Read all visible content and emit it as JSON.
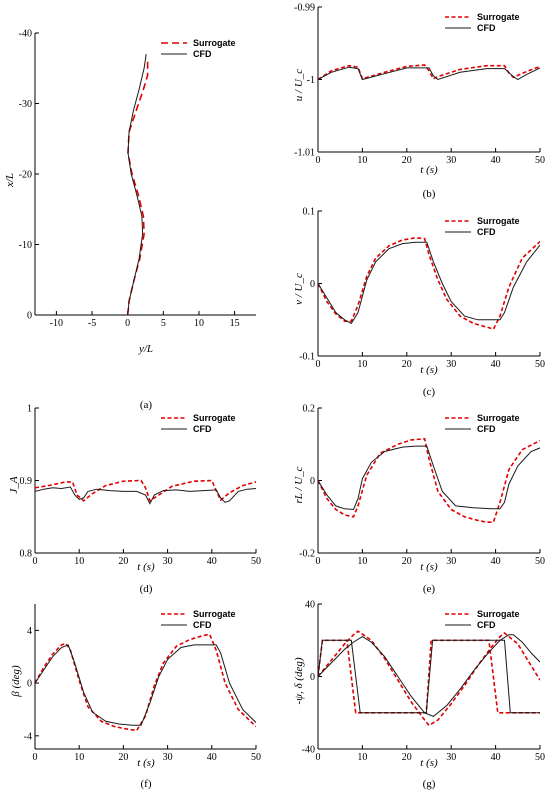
{
  "colors": {
    "surrogate": "#e00000",
    "cfd": "#1a1a1a"
  },
  "legend": {
    "surrogate": "Surrogate",
    "cfd": "CFD"
  },
  "chart_data": [
    {
      "id": "a",
      "type": "line",
      "panel_label": "(a)",
      "xlabel": "y/L",
      "ylabel": "x/L",
      "xlim": [
        -13,
        18
      ],
      "ylim": [
        0,
        -40
      ],
      "xticks": [
        -10,
        -5,
        0,
        5,
        10,
        15
      ],
      "yticks": [
        -40,
        -30,
        -20,
        -10,
        0
      ],
      "legend": "top-right",
      "series": [
        {
          "name": "Surrogate",
          "style": "dashed",
          "x": [
            0,
            0.2,
            0.9,
            1.7,
            2.3,
            2.2,
            1.5,
            0.6,
            0.05,
            0.2,
            1.2,
            2.2,
            2.8,
            2.8
          ],
          "y": [
            0,
            -2,
            -5,
            -8,
            -11.5,
            -14,
            -17,
            -20,
            -23,
            -26,
            -29,
            -32,
            -34,
            -36
          ]
        },
        {
          "name": "CFD",
          "style": "solid",
          "x": [
            0,
            0.2,
            0.9,
            1.6,
            2.1,
            2.0,
            1.3,
            0.5,
            0.05,
            0.2,
            0.8,
            1.6,
            2.3,
            2.6
          ],
          "y": [
            0,
            -2,
            -5,
            -8,
            -11.5,
            -14,
            -17,
            -20,
            -23,
            -26,
            -29,
            -32,
            -35,
            -37
          ]
        }
      ]
    },
    {
      "id": "b",
      "type": "line",
      "panel_label": "(b)",
      "xlabel": "t (s)",
      "ylabel": "u / U_c",
      "xlim": [
        0,
        50
      ],
      "ylim": [
        -1.01,
        -0.99
      ],
      "xticks": [
        0,
        10,
        20,
        30,
        40,
        50
      ],
      "yticks": [
        -1.01,
        -1,
        -0.99
      ],
      "legend": "top-right",
      "series": [
        {
          "name": "Surrogate",
          "style": "dashed",
          "x": [
            0,
            3,
            7,
            9,
            10,
            15,
            20,
            24,
            25,
            26,
            27,
            32,
            38,
            42,
            43,
            44,
            47,
            50
          ],
          "y": [
            -1.0,
            -0.9988,
            -0.9981,
            -0.9983,
            -0.9999,
            -0.999,
            -0.9982,
            -0.998,
            -0.9988,
            -0.9999,
            -0.9996,
            -0.9986,
            -0.9981,
            -0.9981,
            -0.9991,
            -0.9997,
            -0.9989,
            -0.9982
          ]
        },
        {
          "name": "CFD",
          "style": "solid",
          "x": [
            0,
            3,
            7,
            9,
            10,
            15,
            20,
            25,
            26,
            27,
            32,
            38,
            42,
            44,
            45,
            47,
            50
          ],
          "y": [
            -1.0,
            -0.999,
            -0.9983,
            -0.9985,
            -1.0,
            -0.9992,
            -0.9984,
            -0.9984,
            -0.9995,
            -1.0,
            -0.999,
            -0.9985,
            -0.9985,
            -0.9996,
            -1.0,
            -0.9993,
            -0.9984
          ]
        }
      ]
    },
    {
      "id": "c",
      "type": "line",
      "panel_label": "(c)",
      "xlabel": "t (s)",
      "ylabel": "v / U_c",
      "xlim": [
        0,
        50
      ],
      "ylim": [
        -0.1,
        0.1
      ],
      "xticks": [
        0,
        10,
        20,
        30,
        40,
        50
      ],
      "yticks": [
        -0.1,
        0,
        0.1
      ],
      "legend": "top-right",
      "series": [
        {
          "name": "Surrogate",
          "style": "dashed",
          "x": [
            0,
            2,
            4,
            6,
            7.5,
            9,
            11,
            13,
            16,
            19,
            22,
            24,
            25,
            27,
            29,
            32,
            35,
            38,
            39.5,
            41,
            43,
            46,
            50
          ],
          "y": [
            0,
            -0.025,
            -0.042,
            -0.052,
            -0.052,
            -0.03,
            0.01,
            0.035,
            0.052,
            0.06,
            0.063,
            0.062,
            0.04,
            0.005,
            -0.022,
            -0.045,
            -0.055,
            -0.06,
            -0.063,
            -0.045,
            -0.005,
            0.035,
            0.058
          ]
        },
        {
          "name": "CFD",
          "style": "solid",
          "x": [
            0,
            2,
            4,
            6,
            7.5,
            9,
            11,
            13,
            16,
            19,
            22,
            24.5,
            26,
            28,
            30,
            33,
            36,
            39,
            41,
            42,
            44,
            47,
            50
          ],
          "y": [
            0,
            -0.02,
            -0.04,
            -0.05,
            -0.055,
            -0.04,
            0.005,
            0.03,
            0.048,
            0.055,
            0.057,
            0.057,
            0.03,
            0.0,
            -0.025,
            -0.045,
            -0.05,
            -0.05,
            -0.05,
            -0.04,
            -0.005,
            0.03,
            0.053
          ]
        }
      ]
    },
    {
      "id": "d",
      "type": "line",
      "panel_label": "(d)",
      "xlabel": "t (s)",
      "ylabel": "J_A",
      "xlim": [
        0,
        50
      ],
      "ylim": [
        0.8,
        1.0
      ],
      "xticks": [
        0,
        10,
        20,
        30,
        40,
        50
      ],
      "yticks": [
        0.8,
        0.9,
        1.0
      ],
      "legend": "top-right",
      "series": [
        {
          "name": "Surrogate",
          "style": "dashed",
          "x": [
            0,
            3,
            7,
            8.5,
            9.5,
            11,
            13,
            16,
            20,
            24,
            25,
            26,
            28,
            31,
            36,
            40,
            41,
            42,
            44,
            47,
            50
          ],
          "y": [
            0.89,
            0.893,
            0.898,
            0.898,
            0.88,
            0.872,
            0.882,
            0.893,
            0.899,
            0.9,
            0.89,
            0.872,
            0.88,
            0.892,
            0.899,
            0.9,
            0.886,
            0.873,
            0.883,
            0.893,
            0.898
          ]
        },
        {
          "name": "CFD",
          "style": "solid",
          "x": [
            0,
            2,
            4,
            6,
            8,
            9,
            10,
            11,
            12,
            14,
            17,
            20,
            23,
            25,
            26,
            27,
            29,
            32,
            35,
            38,
            41,
            42,
            43,
            44,
            46,
            48,
            50
          ],
          "y": [
            0.885,
            0.888,
            0.89,
            0.889,
            0.891,
            0.88,
            0.874,
            0.876,
            0.885,
            0.888,
            0.886,
            0.885,
            0.885,
            0.88,
            0.868,
            0.88,
            0.886,
            0.887,
            0.885,
            0.886,
            0.887,
            0.876,
            0.87,
            0.872,
            0.885,
            0.888,
            0.889
          ]
        }
      ]
    },
    {
      "id": "e",
      "type": "line",
      "panel_label": "(e)",
      "xlabel": "t (s)",
      "ylabel": "rL / U_c",
      "xlim": [
        0,
        50
      ],
      "ylim": [
        -0.2,
        0.2
      ],
      "xticks": [
        0,
        10,
        20,
        30,
        40,
        50
      ],
      "yticks": [
        -0.2,
        0,
        0.2
      ],
      "legend": "top-right",
      "series": [
        {
          "name": "Surrogate",
          "style": "dashed",
          "x": [
            0,
            2,
            4,
            6,
            8,
            9,
            11,
            14,
            18,
            21,
            24,
            25,
            27,
            30,
            33,
            36,
            38,
            39.5,
            41,
            43,
            46,
            50
          ],
          "y": [
            0,
            -0.05,
            -0.08,
            -0.095,
            -0.1,
            -0.07,
            0.015,
            0.075,
            0.1,
            0.112,
            0.115,
            0.06,
            -0.03,
            -0.08,
            -0.1,
            -0.11,
            -0.115,
            -0.115,
            -0.06,
            0.03,
            0.085,
            0.11
          ]
        },
        {
          "name": "CFD",
          "style": "solid",
          "x": [
            0,
            2,
            4,
            6,
            8,
            9,
            10,
            12,
            15,
            19,
            22,
            24.5,
            26,
            28,
            31,
            35,
            39,
            41,
            42,
            43,
            45,
            48,
            50
          ],
          "y": [
            0,
            -0.04,
            -0.07,
            -0.078,
            -0.08,
            -0.05,
            0.005,
            0.05,
            0.08,
            0.092,
            0.095,
            0.095,
            0.04,
            -0.03,
            -0.07,
            -0.075,
            -0.078,
            -0.078,
            -0.06,
            -0.01,
            0.04,
            0.08,
            0.09
          ]
        }
      ]
    },
    {
      "id": "f",
      "type": "line",
      "panel_label": "(f)",
      "xlabel": "t (s)",
      "ylabel": "β (deg)",
      "xlim": [
        0,
        50
      ],
      "ylim": [
        -5,
        6
      ],
      "xticks": [
        0,
        10,
        20,
        30,
        40,
        50
      ],
      "yticks": [
        -4,
        0,
        4
      ],
      "legend": "top-right",
      "series": [
        {
          "name": "Surrogate",
          "style": "dashed",
          "x": [
            0,
            2,
            4,
            6,
            7,
            8,
            10,
            12,
            15,
            18,
            21,
            23,
            25,
            27,
            29,
            32,
            35,
            38,
            39.5,
            41,
            43,
            46,
            50
          ],
          "y": [
            0,
            1.2,
            2.2,
            2.9,
            3.0,
            2.5,
            0.2,
            -1.8,
            -2.9,
            -3.3,
            -3.5,
            -3.6,
            -2.5,
            -0.2,
            1.5,
            2.8,
            3.3,
            3.6,
            3.7,
            2.5,
            0.0,
            -2.0,
            -3.3
          ]
        },
        {
          "name": "CFD",
          "style": "solid",
          "x": [
            0,
            2,
            4,
            6,
            7.5,
            9,
            11,
            13,
            16,
            19,
            22,
            24,
            26,
            28,
            30,
            33,
            36,
            39,
            41,
            42,
            44,
            47,
            50
          ],
          "y": [
            0,
            1.0,
            2.0,
            2.7,
            2.9,
            1.5,
            -0.7,
            -2.2,
            -2.9,
            -3.1,
            -3.2,
            -3.2,
            -1.5,
            0.5,
            1.8,
            2.7,
            2.9,
            2.9,
            2.9,
            2.3,
            0.0,
            -2.0,
            -3.0
          ]
        }
      ]
    },
    {
      "id": "g",
      "type": "line",
      "panel_label": "(g)",
      "xlabel": "t (s)",
      "ylabel": "-ψ, δ (deg)",
      "xlim": [
        0,
        50
      ],
      "ylim": [
        -40,
        40
      ],
      "xticks": [
        0,
        10,
        20,
        30,
        40,
        50
      ],
      "yticks": [
        -40,
        0,
        40
      ],
      "legend": "top-right",
      "series": [
        {
          "name": "Surrogate",
          "style": "dashed",
          "x": [
            0,
            2,
            4,
            6,
            8,
            9,
            12,
            15,
            18,
            21,
            24,
            25,
            27,
            30,
            33,
            36,
            39,
            41,
            42,
            45,
            48,
            50
          ],
          "y": [
            0,
            6,
            12,
            18,
            23,
            25,
            20,
            10,
            -2,
            -14,
            -24,
            -27,
            -24,
            -15,
            -5,
            6,
            16,
            22,
            24,
            18,
            6,
            -2
          ]
        },
        {
          "name": "Surrogate",
          "style": "dashed",
          "x": [
            0,
            1,
            6.5,
            8.5,
            24.4,
            25.5,
            38.5,
            40.5,
            50
          ],
          "y": [
            0,
            20,
            20,
            -20,
            -20,
            20,
            20,
            -20,
            -20
          ]
        },
        {
          "name": "CFD",
          "style": "solid",
          "x": [
            0,
            2,
            4,
            6,
            8,
            10,
            12,
            15,
            18,
            21,
            24,
            26,
            29,
            32,
            35,
            38,
            41,
            43,
            44,
            46,
            48,
            50
          ],
          "y": [
            0,
            5,
            10,
            15,
            19,
            22,
            19,
            11,
            0,
            -11,
            -20,
            -22,
            -16,
            -7,
            3,
            12,
            20,
            23,
            23,
            19,
            13,
            8
          ]
        },
        {
          "name": "CFD",
          "style": "solid",
          "x": [
            0,
            1,
            7.5,
            9.5,
            24.4,
            25.8,
            42,
            43.3,
            50
          ],
          "y": [
            0,
            20,
            20,
            -20,
            -20,
            20,
            20,
            -20,
            -20
          ]
        }
      ]
    }
  ]
}
